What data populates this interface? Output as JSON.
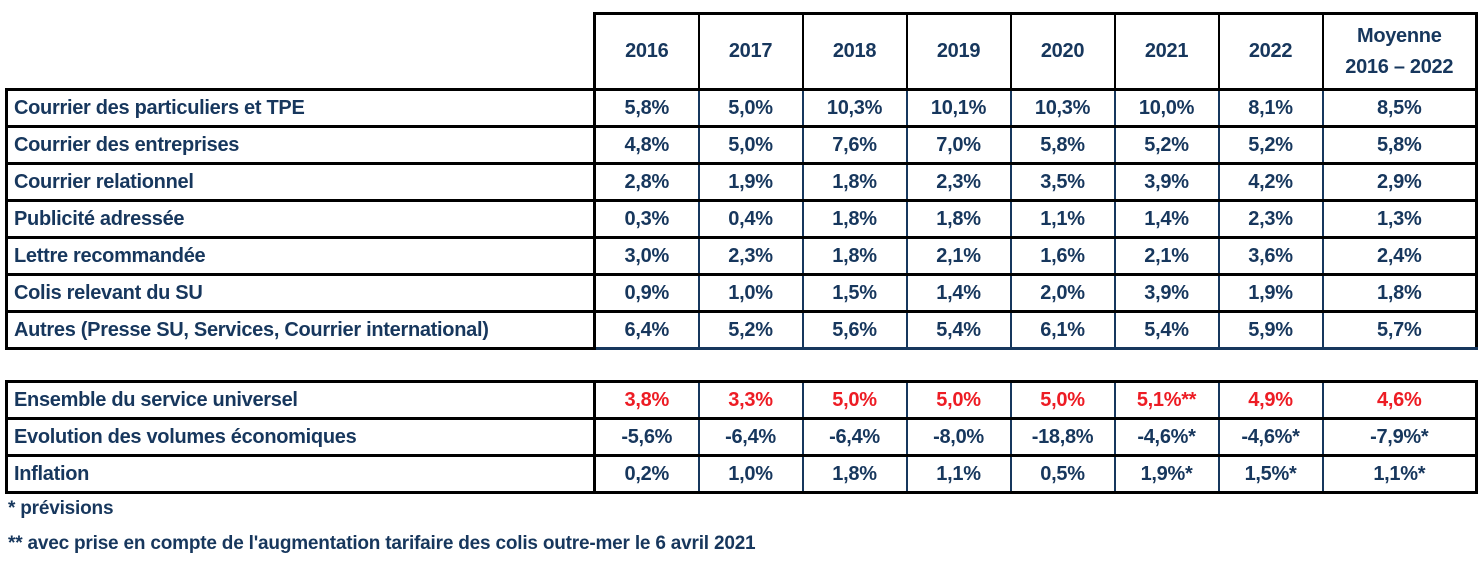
{
  "colors": {
    "text_navy": "#17375d",
    "text_red": "#ed1c24",
    "border_black": "#000000",
    "background": "#ffffff"
  },
  "header": {
    "year_columns": [
      "2016",
      "2017",
      "2018",
      "2019",
      "2020",
      "2021",
      "2022"
    ],
    "average_line1": "Moyenne",
    "average_line2": "2016 – 2022"
  },
  "table1": {
    "rows": [
      {
        "label": "Courrier des particuliers et TPE",
        "values": [
          "5,8%",
          "5,0%",
          "10,3%",
          "10,1%",
          "10,3%",
          "10,0%",
          "8,1%",
          "8,5%"
        ]
      },
      {
        "label": "Courrier des entreprises",
        "values": [
          "4,8%",
          "5,0%",
          "7,6%",
          "7,0%",
          "5,8%",
          "5,2%",
          "5,2%",
          "5,8%"
        ]
      },
      {
        "label": "Courrier relationnel",
        "values": [
          "2,8%",
          "1,9%",
          "1,8%",
          "2,3%",
          "3,5%",
          "3,9%",
          "4,2%",
          "2,9%"
        ]
      },
      {
        "label": "Publicité adressée",
        "values": [
          "0,3%",
          "0,4%",
          "1,8%",
          "1,8%",
          "1,1%",
          "1,4%",
          "2,3%",
          "1,3%"
        ]
      },
      {
        "label": "Lettre recommandée",
        "values": [
          "3,0%",
          "2,3%",
          "1,8%",
          "2,1%",
          "1,6%",
          "2,1%",
          "3,6%",
          "2,4%"
        ]
      },
      {
        "label": "Colis relevant du SU",
        "values": [
          "0,9%",
          "1,0%",
          "1,5%",
          "1,4%",
          "2,0%",
          "3,9%",
          "1,9%",
          "1,8%"
        ]
      },
      {
        "label": "Autres (Presse SU, Services, Courrier international)",
        "values": [
          "6,4%",
          "5,2%",
          "5,6%",
          "5,4%",
          "6,1%",
          "5,4%",
          "5,9%",
          "5,7%"
        ]
      }
    ]
  },
  "table2": {
    "rows": [
      {
        "label": "Ensemble du service universel",
        "values": [
          "3,8%",
          "3,3%",
          "5,0%",
          "5,0%",
          "5,0%",
          "5,1%**",
          "4,9%",
          "4,6%"
        ],
        "color": "red"
      },
      {
        "label": "Evolution des volumes économiques",
        "values": [
          "-5,6%",
          "-6,4%",
          "-6,4%",
          "-8,0%",
          "-18,8%",
          "-4,6%*",
          "-4,6%*",
          "-7,9%*"
        ],
        "color": "navy"
      },
      {
        "label": "Inflation",
        "values": [
          "0,2%",
          "1,0%",
          "1,8%",
          "1,1%",
          "0,5%",
          "1,9%*",
          "1,5%*",
          "1,1%*"
        ],
        "color": "navy"
      }
    ]
  },
  "footnotes": [
    "* prévisions",
    "** avec prise en compte de l'augmentation tarifaire des colis outre-mer le 6 avril 2021"
  ]
}
